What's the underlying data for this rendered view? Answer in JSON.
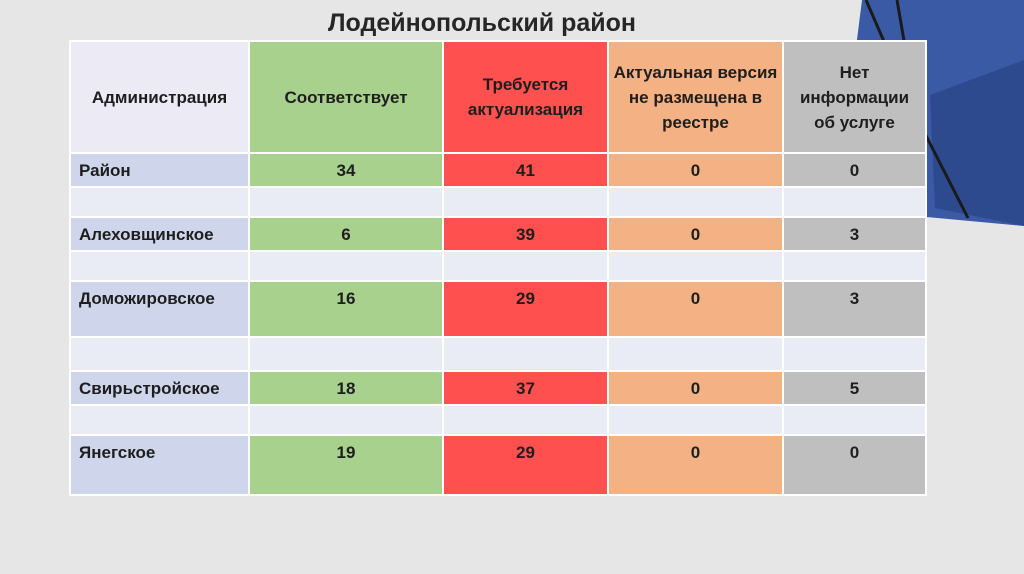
{
  "title": "Лодейнопольский район",
  "headers": [
    "Администрация",
    "Соответствует",
    "Требуется актуализация",
    "Актуальная версия не размещена в реестре",
    "Нет информации об услуге"
  ],
  "rows": [
    {
      "name": "Район",
      "values": [
        "34",
        "41",
        "0",
        "0"
      ]
    },
    {
      "name": "Алеховщинское",
      "values": [
        "6",
        "39",
        "0",
        "3"
      ]
    },
    {
      "name": "Доможировское",
      "values": [
        "16",
        "29",
        "0",
        "3"
      ]
    },
    {
      "name": "Свирьстройское",
      "values": [
        "18",
        "37",
        "0",
        "5"
      ]
    },
    {
      "name": "Янегское",
      "values": [
        "19",
        "29",
        "0",
        "0"
      ]
    }
  ],
  "colors": {
    "background": "#e6e6e6",
    "admin_header": "#ecebf5",
    "admin": "#cfd5ea",
    "matches": "#a9d18e",
    "needs_update": "#ff5050",
    "not_in_registry": "#f4b183",
    "no_info": "#bfbfbf",
    "accent": "#2f5597"
  }
}
